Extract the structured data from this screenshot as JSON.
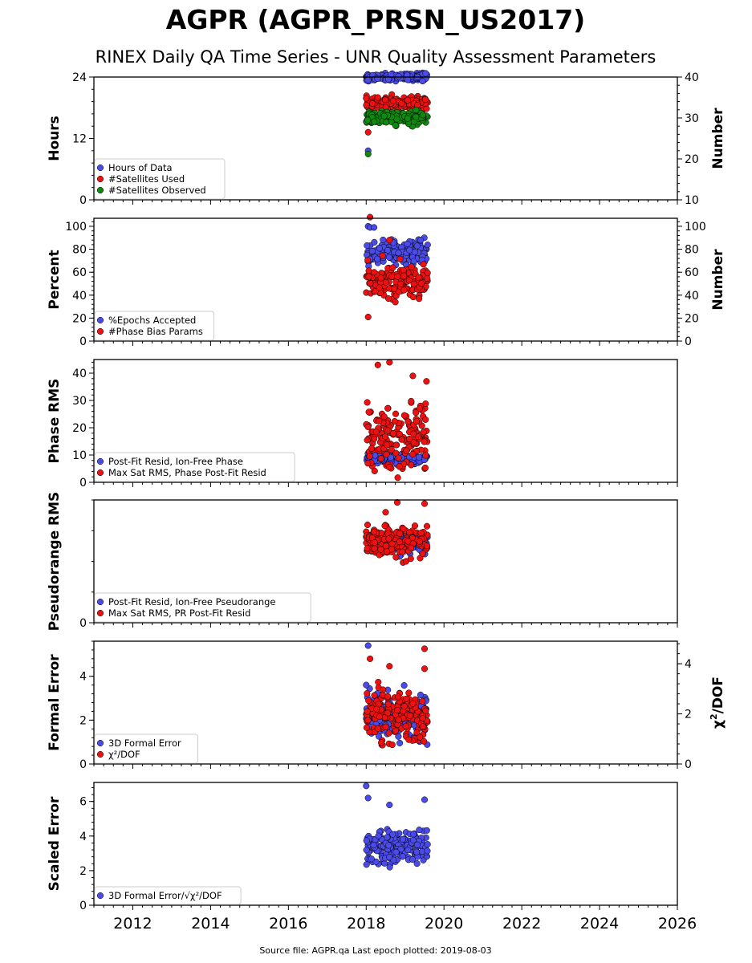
{
  "title": "AGPR (AGPR_PRSN_US2017)",
  "subtitle": "RINEX Daily QA Time Series - UNR Quality Assessment Parameters",
  "footer": "Source file: AGPR.qa Last epoch plotted: 2019-08-03",
  "colors": {
    "blue": "#4b4bea",
    "red": "#ee1111",
    "green": "#0f8a0f"
  },
  "x_axis": {
    "range": [
      2011.0,
      2026.0
    ],
    "tick_labels": [
      "2012",
      "2014",
      "2016",
      "2018",
      "2020",
      "2022",
      "2024",
      "2026"
    ]
  },
  "chart_data": [
    {
      "type": "scatter",
      "id": "hours",
      "ylabel": "Hours",
      "ylim": [
        0,
        24
      ],
      "ytick_labels": [
        "0",
        "12",
        "24"
      ],
      "right_axis": {
        "label": "Number",
        "ylim": [
          10,
          40
        ],
        "tick_labels": [
          "10",
          "20",
          "30",
          "40"
        ]
      },
      "legend": [
        "Hours of Data",
        "#Satellites Used",
        "#Satellites Observed"
      ],
      "legend_position": "lower-left",
      "series": [
        {
          "name": "Hours of Data",
          "color": "blue",
          "axis": "left",
          "x_range": [
            2018.0,
            2019.58
          ],
          "center": 24.0,
          "spread": 0.3,
          "outliers": [
            [
              2018.05,
              9.6
            ],
            [
              2019.45,
              23.2
            ]
          ]
        },
        {
          "name": "#Satellites Used",
          "color": "red",
          "axis": "right",
          "x_range": [
            2018.0,
            2019.58
          ],
          "center": 33.5,
          "spread": 0.8,
          "outliers": [
            [
              2018.05,
              26.5
            ],
            [
              2018.3,
              35
            ]
          ]
        },
        {
          "name": "#Satellites Observed",
          "color": "green",
          "axis": "right",
          "x_range": [
            2018.0,
            2019.58
          ],
          "center": 30.0,
          "spread": 0.8,
          "outliers": [
            [
              2018.05,
              21.2
            ],
            [
              2018.75,
              28.2
            ]
          ]
        }
      ]
    },
    {
      "type": "scatter",
      "id": "percent",
      "ylabel": "Percent",
      "ylim": [
        0,
        107
      ],
      "ytick_labels": [
        "0",
        "20",
        "40",
        "60",
        "80",
        "100"
      ],
      "right_axis": {
        "label": "Number",
        "ylim": [
          0,
          107
        ],
        "tick_labels": [
          "0",
          "20",
          "40",
          "60",
          "80",
          "100"
        ]
      },
      "legend": [
        "%Epochs Accepted",
        "#Phase Bias Params"
      ],
      "legend_position": "lower-left",
      "series": [
        {
          "name": "%Epochs Accepted",
          "color": "blue",
          "axis": "left",
          "x_range": [
            2018.0,
            2019.58
          ],
          "center": 77,
          "spread": 5,
          "outliers": [
            [
              2018.05,
              100
            ],
            [
              2018.1,
              99
            ],
            [
              2018.2,
              99
            ],
            [
              2019.4,
              88
            ]
          ]
        },
        {
          "name": "#Phase Bias Params",
          "color": "red",
          "axis": "right",
          "x_range": [
            2018.0,
            2019.58
          ],
          "center": 52,
          "spread": 7,
          "outliers": [
            [
              2018.05,
              21
            ],
            [
              2018.1,
              108
            ],
            [
              2018.75,
              34
            ],
            [
              2018.6,
              88
            ]
          ]
        }
      ]
    },
    {
      "type": "scatter",
      "id": "phase-rms",
      "ylabel": "Phase RMS",
      "ylim": [
        0,
        45
      ],
      "ytick_labels": [
        "0",
        "10",
        "20",
        "30",
        "40"
      ],
      "legend": [
        "Post-Fit Resid, Ion-Free Phase",
        "Max Sat RMS, Phase Post-Fit Resid"
      ],
      "legend_position": "lower-left",
      "series": [
        {
          "name": "Post-Fit Resid, Ion-Free Phase",
          "color": "blue",
          "axis": "left",
          "x_range": [
            2018.0,
            2019.58
          ],
          "center": 8.5,
          "spread": 0.8,
          "outliers": []
        },
        {
          "name": "Max Sat RMS, Phase Post-Fit Resid",
          "color": "red",
          "axis": "left",
          "x_range": [
            2018.0,
            2019.58
          ],
          "center": 17,
          "spread": 6,
          "outliers": [
            [
              2018.3,
              43
            ],
            [
              2018.6,
              44
            ],
            [
              2019.2,
              39
            ],
            [
              2019.55,
              37
            ]
          ]
        }
      ]
    },
    {
      "type": "scatter",
      "id": "pseudorange-rms",
      "ylabel": "Pseudorange RMS",
      "ylim": [
        0,
        1.0
      ],
      "ytick_labels": [
        "0"
      ],
      "legend": [
        "Post-Fit Resid, Ion-Free Pseudorange",
        "Max Sat RMS, PR Post-Fit Resid"
      ],
      "legend_position": "lower-left",
      "series": [
        {
          "name": "Post-Fit Resid, Ion-Free Pseudorange",
          "color": "blue",
          "axis": "left",
          "x_range": [
            2018.0,
            2019.58
          ],
          "center": 0.65,
          "spread": 0.04,
          "outliers": []
        },
        {
          "name": "Max Sat RMS, PR Post-Fit Resid",
          "color": "red",
          "axis": "left",
          "x_range": [
            2018.0,
            2019.58
          ],
          "center": 0.66,
          "spread": 0.06,
          "outliers": [
            [
              2018.8,
              0.98
            ],
            [
              2019.5,
              0.97
            ],
            [
              2018.5,
              0.9
            ]
          ]
        }
      ]
    },
    {
      "type": "scatter",
      "id": "formal-error",
      "ylabel": "Formal Error",
      "ylim": [
        0,
        5.6
      ],
      "ytick_labels": [
        "0",
        "2",
        "4"
      ],
      "right_axis": {
        "label_main": "χ",
        "label_sup": "2",
        "label_tail": "/DOF",
        "ylim": [
          0,
          4.9
        ],
        "tick_labels": [
          "0",
          "2",
          "4"
        ]
      },
      "legend": [
        "3D Formal Error",
        "χ²/DOF"
      ],
      "legend_position": "lower-left",
      "series": [
        {
          "name": "3D Formal Error",
          "color": "blue",
          "axis": "left",
          "x_range": [
            2018.0,
            2019.58
          ],
          "center": 2.2,
          "spread": 0.5,
          "outliers": [
            [
              2018.05,
              5.4
            ],
            [
              2018.0,
              3.6
            ]
          ]
        },
        {
          "name": "χ²/DOF",
          "color": "red",
          "axis": "right",
          "x_range": [
            2018.0,
            2019.58
          ],
          "center": 1.9,
          "spread": 0.5,
          "outliers": [
            [
              2018.1,
              4.2
            ],
            [
              2018.6,
              3.9
            ],
            [
              2019.5,
              4.6
            ],
            [
              2019.5,
              3.8
            ]
          ]
        }
      ]
    },
    {
      "type": "scatter",
      "id": "scaled-error",
      "ylabel": "Scaled Error",
      "ylim": [
        0,
        7.1
      ],
      "ytick_labels": [
        "0",
        "2",
        "4",
        "6"
      ],
      "legend": [
        "3D Formal Error/√χ²/DOF"
      ],
      "legend_position": "lower-left",
      "series": [
        {
          "name": "3D Formal Error/√χ²/DOF",
          "color": "blue",
          "axis": "left",
          "x_range": [
            2018.0,
            2019.58
          ],
          "center": 3.4,
          "spread": 0.5,
          "outliers": [
            [
              2018.0,
              6.9
            ],
            [
              2018.05,
              6.2
            ],
            [
              2018.6,
              5.8
            ],
            [
              2019.5,
              6.1
            ]
          ]
        }
      ]
    }
  ]
}
